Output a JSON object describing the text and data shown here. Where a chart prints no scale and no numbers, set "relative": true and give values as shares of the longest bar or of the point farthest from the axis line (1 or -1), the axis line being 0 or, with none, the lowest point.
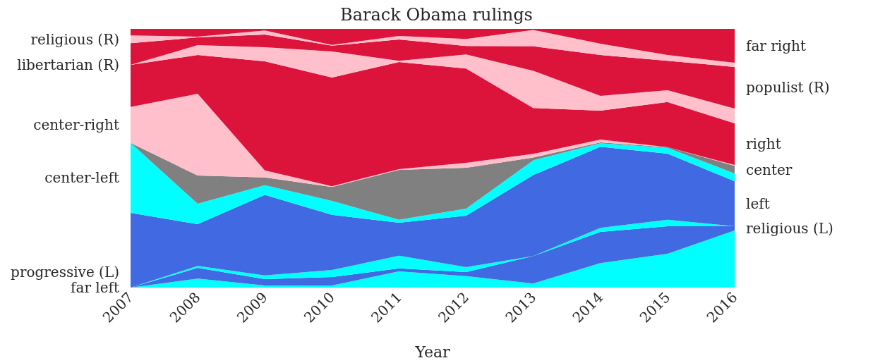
{
  "chart_data": {
    "type": "area",
    "stacked": true,
    "relative": true,
    "title": "Barack Obama rulings",
    "xlabel": "Year",
    "categories": [
      "2007",
      "2008",
      "2009",
      "2010",
      "2011",
      "2012",
      "2013",
      "2014",
      "2015",
      "2016"
    ],
    "grid": false,
    "legend": false,
    "series": [
      {
        "name": "far left",
        "color": "#00ffff",
        "values": [
          0,
          0.035,
          0.008,
          0.008,
          0.063,
          0.044,
          0.016,
          0.095,
          0.131,
          0.221
        ]
      },
      {
        "name": "religious (L)",
        "color": "#4169e1",
        "values": [
          0,
          0.041,
          0.025,
          0.033,
          0.011,
          0.016,
          0.106,
          0.12,
          0.106,
          0.016
        ]
      },
      {
        "name": "progressive (L)",
        "color": "#00ffff",
        "values": [
          0,
          0.008,
          0.014,
          0.027,
          0.049,
          0.019,
          0,
          0.016,
          0.025,
          0
        ]
      },
      {
        "name": "left",
        "color": "#4169e1",
        "values": [
          0.289,
          0.161,
          0.311,
          0.213,
          0.128,
          0.199,
          0.313,
          0.313,
          0.256,
          0.174
        ]
      },
      {
        "name": "center-left",
        "color": "#00ffff",
        "values": [
          0.27,
          0.079,
          0.038,
          0.054,
          0.011,
          0.027,
          0.057,
          0.014,
          0.022,
          0.03
        ]
      },
      {
        "name": "center",
        "color": "#808080",
        "values": [
          0,
          0.109,
          0.03,
          0.054,
          0.193,
          0.158,
          0.011,
          0.003,
          0.003,
          0.03
        ]
      },
      {
        "name": "center-right",
        "color": "#ffc0cb",
        "values": [
          0.139,
          0.316,
          0.027,
          0.003,
          0.003,
          0.019,
          0.014,
          0.011,
          0,
          0.003
        ]
      },
      {
        "name": "right",
        "color": "#dc143c",
        "values": [
          0.163,
          0.15,
          0.422,
          0.42,
          0.414,
          0.365,
          0.177,
          0.112,
          0.174,
          0.161
        ]
      },
      {
        "name": "libertarian (R)",
        "color": "#ffc0cb",
        "values": [
          0,
          0.038,
          0.054,
          0.101,
          0.005,
          0.054,
          0.144,
          0.057,
          0.046,
          0.057
        ]
      },
      {
        "name": "populist (R)",
        "color": "#dc143c",
        "values": [
          0.084,
          0.03,
          0.049,
          0.022,
          0.082,
          0.033,
          0.095,
          0.158,
          0.114,
          0.161
        ]
      },
      {
        "name": "religious (R)",
        "color": "#ffc0cb",
        "values": [
          0.03,
          0.003,
          0.016,
          0.003,
          0.014,
          0.027,
          0.063,
          0.044,
          0.022,
          0.016
        ]
      },
      {
        "name": "far right",
        "color": "#dc143c",
        "values": [
          0.025,
          0.03,
          0.006,
          0.062,
          0.027,
          0.039,
          0.004,
          0.057,
          0.101,
          0.131
        ]
      }
    ]
  }
}
